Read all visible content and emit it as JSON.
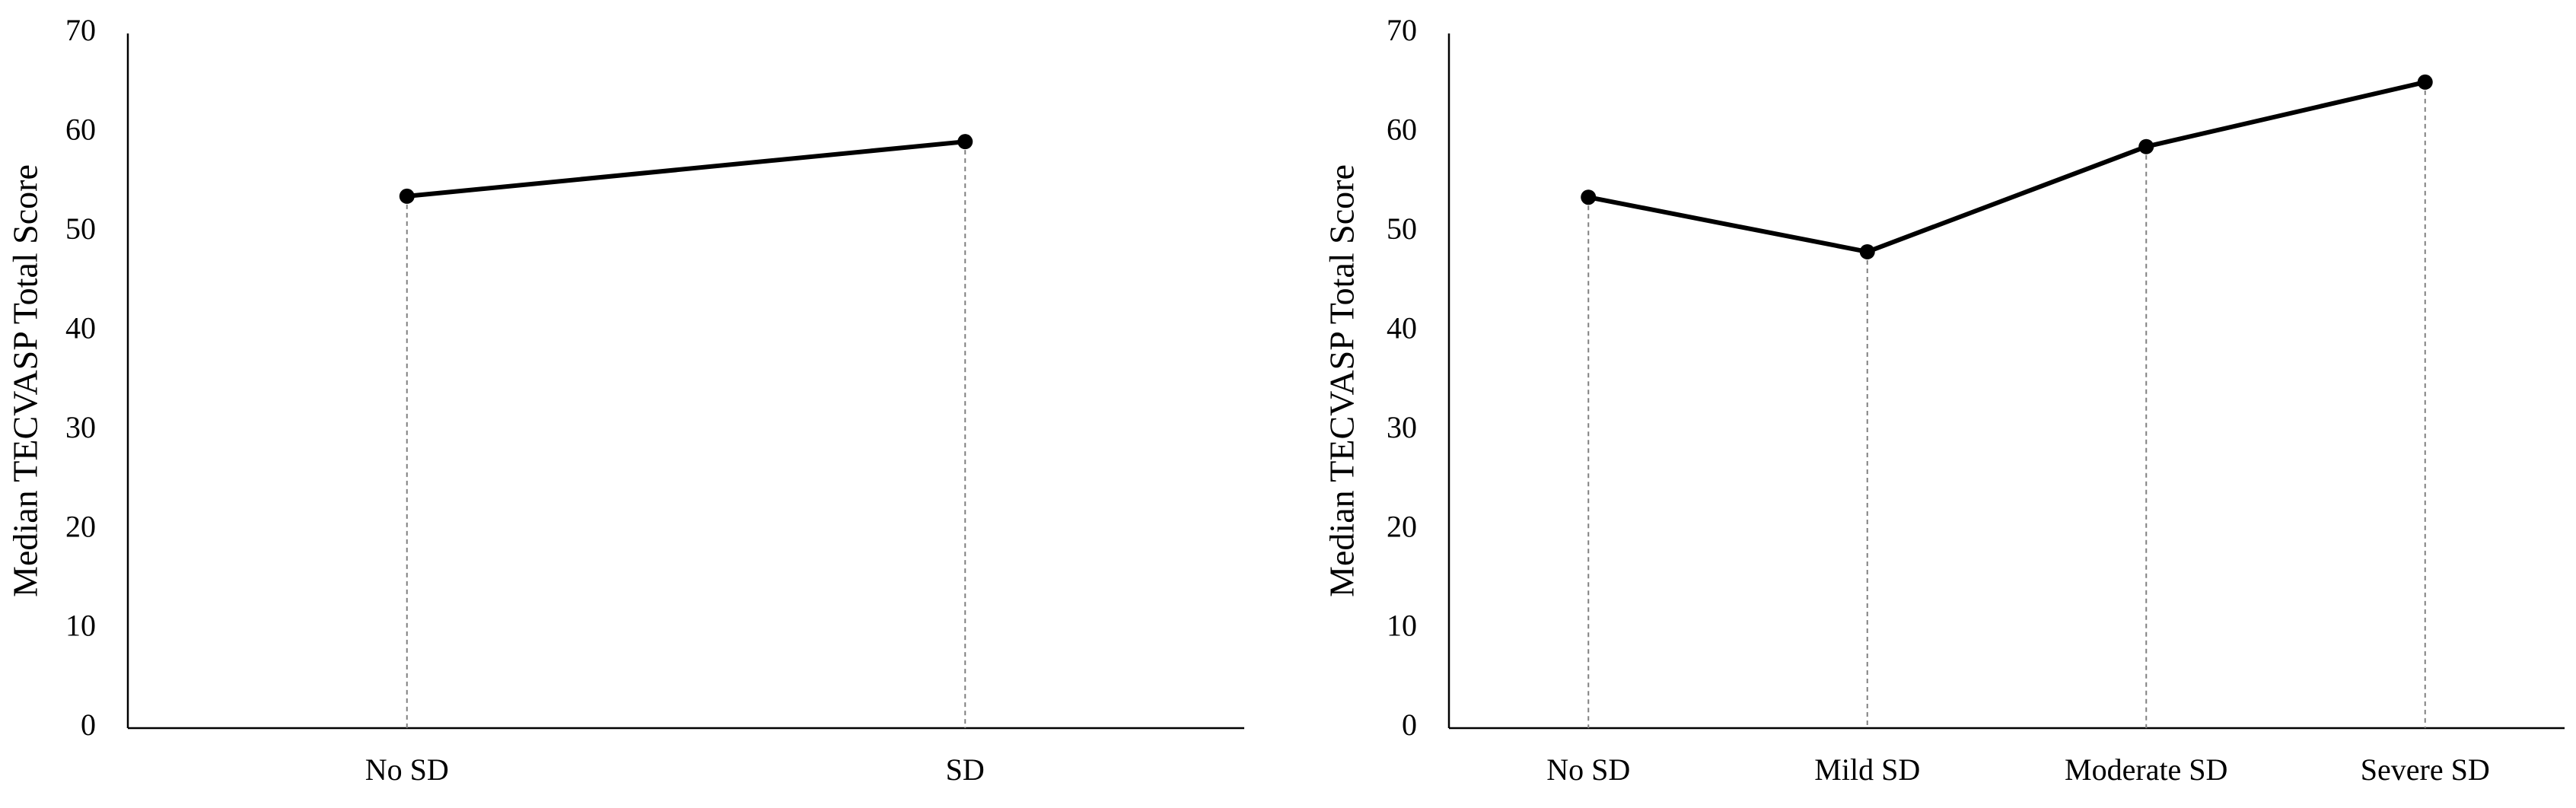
{
  "figure": {
    "colors": {
      "series": "#000000",
      "axis": "#000000",
      "drop_lines": "#808080"
    }
  },
  "chart_data": [
    {
      "type": "line",
      "categories": [
        "No SD",
        "SD"
      ],
      "series": [
        {
          "values": [
            53.6,
            59.1
          ]
        }
      ],
      "xlabel": "",
      "ylabel": "Median TECVASP Total Score",
      "ylim": [
        0,
        70
      ],
      "yticks": [
        0,
        10,
        20,
        30,
        40,
        50,
        60,
        70
      ],
      "markers": true,
      "drop_lines": true,
      "grid": false,
      "legend": "none"
    },
    {
      "type": "line",
      "categories": [
        "No SD",
        "Mild SD",
        "Moderate SD",
        "Severe SD"
      ],
      "series": [
        {
          "values": [
            53.5,
            48,
            58.6,
            65.1
          ]
        }
      ],
      "xlabel": "",
      "ylabel": "Median TECVASP Total Score",
      "ylim": [
        0,
        70
      ],
      "yticks": [
        0,
        10,
        20,
        30,
        40,
        50,
        60,
        70
      ],
      "markers": true,
      "drop_lines": true,
      "grid": false,
      "legend": "none"
    }
  ]
}
